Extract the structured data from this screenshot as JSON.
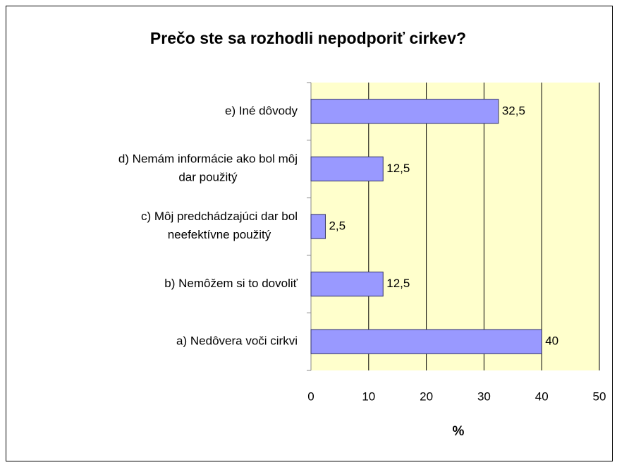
{
  "chart_data": {
    "type": "bar",
    "orientation": "horizontal",
    "title": "Prečo ste sa rozhodli nepodporiť cirkev?",
    "x_label": "%",
    "categories": [
      "a) Nedôvera voči cirkvi",
      "b) Nemôžem si to dovoliť",
      "c) Môj predchádzajúci dar bol neefektívne použitý",
      "d) Nemám informácie ako bol môj dar použitý",
      "e) Iné dôvody"
    ],
    "values": [
      40,
      12.5,
      2.5,
      12.5,
      32.5
    ],
    "value_labels": [
      "40",
      "12,5",
      "2,5",
      "12,5",
      "32,5"
    ],
    "color": "#9999ff",
    "xlim": [
      0,
      50
    ],
    "xticks": [
      0,
      10,
      20,
      30,
      40,
      50
    ],
    "grid": true
  }
}
